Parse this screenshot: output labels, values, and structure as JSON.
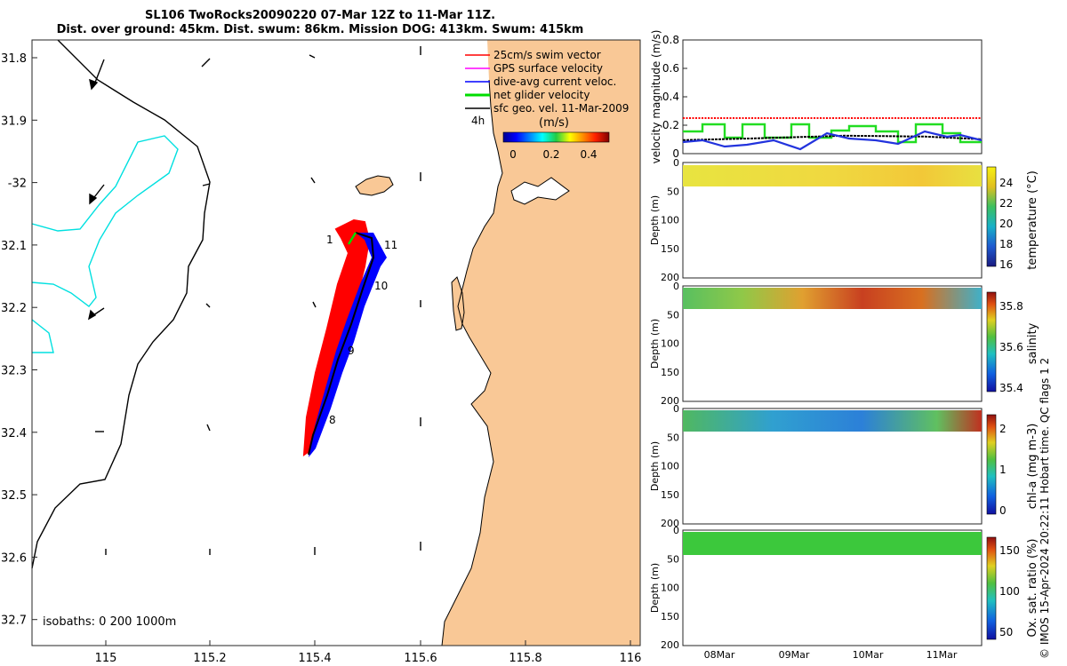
{
  "title": {
    "line1": "SL106 TwoRocks20090220 07-Mar 12Z to 11-Mar 11Z.",
    "line2": "Dist. over ground: 45km. Dist. swum: 86km. Mission DOG: 413km. Swum: 415km"
  },
  "map": {
    "lon_ticks": [
      "115",
      "115.2",
      "115.4",
      "115.6",
      "115.8",
      "116"
    ],
    "lat_ticks": [
      "31.8",
      "31.9",
      "-32",
      "32.1",
      "32.2",
      "32.3",
      "32.4",
      "32.5",
      "32.6",
      "32.7"
    ],
    "isobaths_label": "isobaths: 0   200  1000m",
    "legend": [
      {
        "label": "25cm/s swim vector",
        "color": "#ff0000"
      },
      {
        "label": "GPS surface velocity",
        "color": "#ff00ff"
      },
      {
        "label": "dive-avg current veloc.",
        "color": "#0000ff"
      },
      {
        "label": "net glider velocity",
        "color": "#00dd00"
      },
      {
        "label": "sfc geo. vel. 11-Mar-2009",
        "color": "#000000"
      }
    ],
    "scale_label": "4h",
    "colorbar_title": "(m/s)",
    "colorbar_ticks": [
      "0",
      "0.2",
      "0.4"
    ],
    "day_labels": [
      {
        "text": "1"
      },
      {
        "text": "11"
      },
      {
        "text": "10"
      },
      {
        "text": "9"
      },
      {
        "text": "8"
      }
    ],
    "colors": {
      "land": "#f9c896",
      "track_red": "#ff0000",
      "track_blue": "#0000ff",
      "isobath": "#00e0e0"
    }
  },
  "velocity_panel": {
    "ylabel": "velocity magnitude (m/s)",
    "yticks": [
      "0",
      "0.2",
      "0.4",
      "0.6",
      "0.8"
    ],
    "swim_level": 0.25,
    "black_level": 0.12
  },
  "sections": [
    {
      "name": "temperature",
      "label": "temperature (°C)",
      "cb_ticks": [
        "24",
        "22",
        "20",
        "18",
        "16"
      ],
      "yticks": [
        "0",
        "50",
        "100",
        "150",
        "200"
      ],
      "ylabel": "Depth (m)"
    },
    {
      "name": "salinity",
      "label": "salinity",
      "cb_ticks": [
        "35.8",
        "35.6",
        "35.4"
      ],
      "yticks": [
        "0",
        "50",
        "100",
        "150",
        "200"
      ],
      "ylabel": "Depth (m)"
    },
    {
      "name": "chl-a",
      "label": "chl-a (mg m-3)",
      "cb_ticks": [
        "2",
        "1",
        "0"
      ],
      "yticks": [
        "0",
        "50",
        "100",
        "150",
        "200"
      ],
      "ylabel": "Depth (m)"
    },
    {
      "name": "oxygen",
      "label": "Ox. sat. ratio (%)",
      "cb_ticks": [
        "150",
        "100",
        "50"
      ],
      "yticks": [
        "0",
        "50",
        "100",
        "150",
        "200"
      ],
      "ylabel": "Depth (m)"
    }
  ],
  "time_ticks": [
    "08Mar",
    "09Mar",
    "10Mar",
    "11Mar"
  ],
  "qc_label": "QC flags 1  2",
  "credit": "© IMOS 15-Apr-2024 20:22:11 Hobart time."
}
